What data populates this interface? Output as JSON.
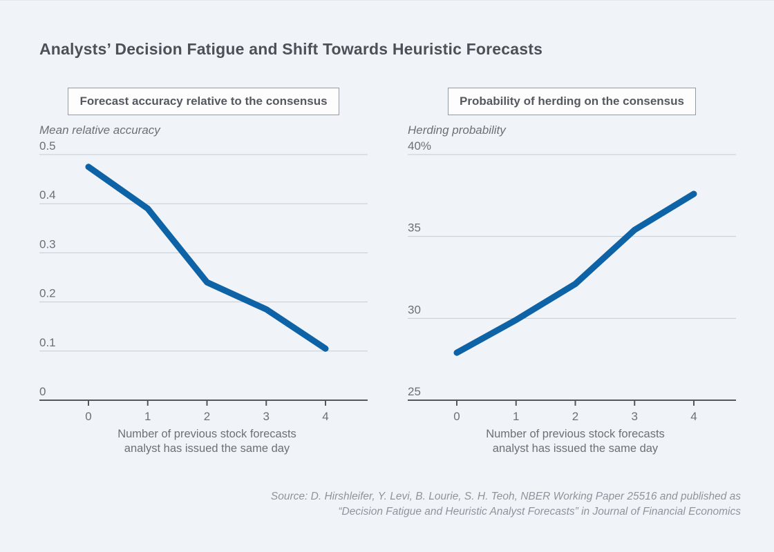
{
  "page": {
    "title": "Analysts’ Decision Fatigue and Shift Towards Heuristic Forecasts",
    "background_color": "#f0f4f8",
    "accent_color": "#0d63a5",
    "source_line1": "Source: D. Hirshleifer, Y. Levi, B. Lourie, S. H. Teoh, NBER Working Paper 25516 and published as",
    "source_line2": "“Decision Fatigue and Heuristic Analyst Forecasts” in Journal of Financial Economics"
  },
  "chart_data": [
    {
      "type": "line",
      "title": "Forecast accuracy relative to the consensus",
      "ylabel": "Mean relative accuracy",
      "xlabel_line1": "Number of previous stock forecasts",
      "xlabel_line2": "analyst has issued the same day",
      "x": [
        0,
        1,
        2,
        3,
        4
      ],
      "values": [
        0.475,
        0.39,
        0.24,
        0.185,
        0.105
      ],
      "ylim": [
        0,
        0.5
      ],
      "yticks": [
        0.5,
        0.4,
        0.3,
        0.2,
        0.1,
        0
      ],
      "ytick_labels": [
        "0.5",
        "0.4",
        "0.3",
        "0.2",
        "0.1",
        "0"
      ],
      "xtick_labels": [
        "0",
        "1",
        "2",
        "3",
        "4"
      ],
      "line_color": "#0d63a5",
      "grid": true,
      "legend": "none"
    },
    {
      "type": "line",
      "title": "Probability of herding on the consensus",
      "ylabel": "Herding probability",
      "xlabel_line1": "Number of previous stock forecasts",
      "xlabel_line2": "analyst has issued the same day",
      "x": [
        0,
        1,
        2,
        3,
        4
      ],
      "values": [
        27.9,
        29.9,
        32.1,
        35.4,
        37.6
      ],
      "ylim": [
        25,
        40
      ],
      "yticks": [
        40,
        35,
        30,
        25
      ],
      "ytick_labels": [
        "40%",
        "35",
        "30",
        "25"
      ],
      "xtick_labels": [
        "0",
        "1",
        "2",
        "3",
        "4"
      ],
      "line_color": "#0d63a5",
      "grid": true,
      "legend": "none"
    }
  ]
}
